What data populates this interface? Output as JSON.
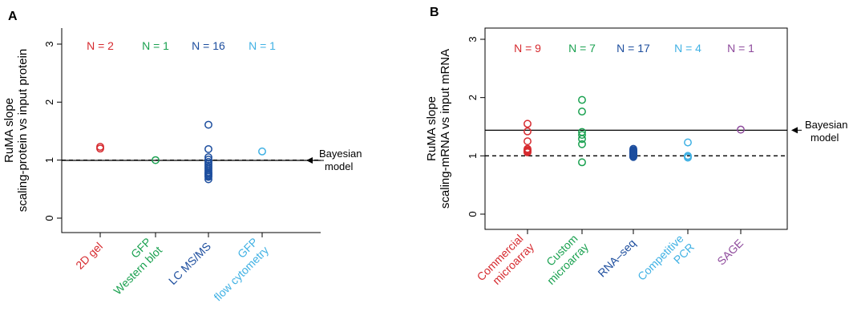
{
  "chart_data": [
    {
      "panel_label": "A",
      "type": "scatter",
      "ylabel": [
        "RuMA slope",
        "scaling-protein vs input protein"
      ],
      "ylim": [
        0,
        3
      ],
      "yticks": [
        "0",
        "1",
        "2",
        "3"
      ],
      "box": "left-bottom",
      "reference_line": {
        "y": 1.0,
        "style": "dashed"
      },
      "model_line": {
        "y": 0.995,
        "label": [
          "Bayesian",
          "model"
        ],
        "arrow": true
      },
      "categories": [
        {
          "label": [
            "2D gel"
          ],
          "color": "#d62a2f",
          "n_label": "N = 2",
          "values": [
            1.2,
            1.23
          ]
        },
        {
          "label": [
            "GFP",
            "Western blot"
          ],
          "color": "#1aa150",
          "n_label": "N = 1",
          "values": [
            1.0
          ]
        },
        {
          "label": [
            "LC MS/MS"
          ],
          "color": "#1d4e9e",
          "n_label": "N = 16",
          "values": [
            1.61,
            1.19,
            1.05,
            1.01,
            0.97,
            0.94,
            0.91,
            0.88,
            0.85,
            0.82,
            0.79,
            0.77,
            0.75,
            0.73,
            0.71,
            0.67
          ]
        },
        {
          "label": [
            "GFP",
            "flow cytometry"
          ],
          "color": "#40b1e4",
          "n_label": "N = 1",
          "values": [
            1.15
          ]
        }
      ]
    },
    {
      "panel_label": "B",
      "type": "scatter",
      "ylabel": [
        "RuMA slope",
        "scaling-mRNA vs input mRNA"
      ],
      "ylim": [
        0,
        3
      ],
      "yticks": [
        "0",
        "1",
        "2",
        "3"
      ],
      "box": "full",
      "reference_line": {
        "y": 1.0,
        "style": "dashed"
      },
      "model_line": {
        "y": 1.44,
        "label": [
          "Bayesian",
          "model"
        ],
        "arrow": true
      },
      "categories": [
        {
          "label": [
            "Commercial",
            "microarray"
          ],
          "color": "#d62a2f",
          "n_label": "N = 9",
          "values": [
            1.55,
            1.42,
            1.25,
            1.12,
            1.1,
            1.09,
            1.08,
            1.07,
            1.06
          ]
        },
        {
          "label": [
            "Custom",
            "microarray"
          ],
          "color": "#1aa150",
          "n_label": "N = 7",
          "values": [
            1.96,
            1.76,
            1.41,
            1.36,
            1.29,
            1.2,
            0.89
          ]
        },
        {
          "label": [
            "RNA–seq"
          ],
          "color": "#1d4e9e",
          "n_label": "N = 17",
          "values": [
            1.12,
            1.1,
            1.09,
            1.08,
            1.07,
            1.06,
            1.05,
            1.04,
            1.03,
            1.02,
            1.02,
            1.01,
            1.0,
            1.0,
            0.99,
            0.99,
            0.98
          ]
        },
        {
          "label": [
            "Competitive",
            "PCR"
          ],
          "color": "#40b1e4",
          "n_label": "N = 4",
          "values": [
            1.23,
            1.0,
            0.98,
            0.97
          ]
        },
        {
          "label": [
            "SAGE"
          ],
          "color": "#8e4a9c",
          "n_label": "N = 1",
          "values": [
            1.45
          ]
        }
      ]
    }
  ]
}
